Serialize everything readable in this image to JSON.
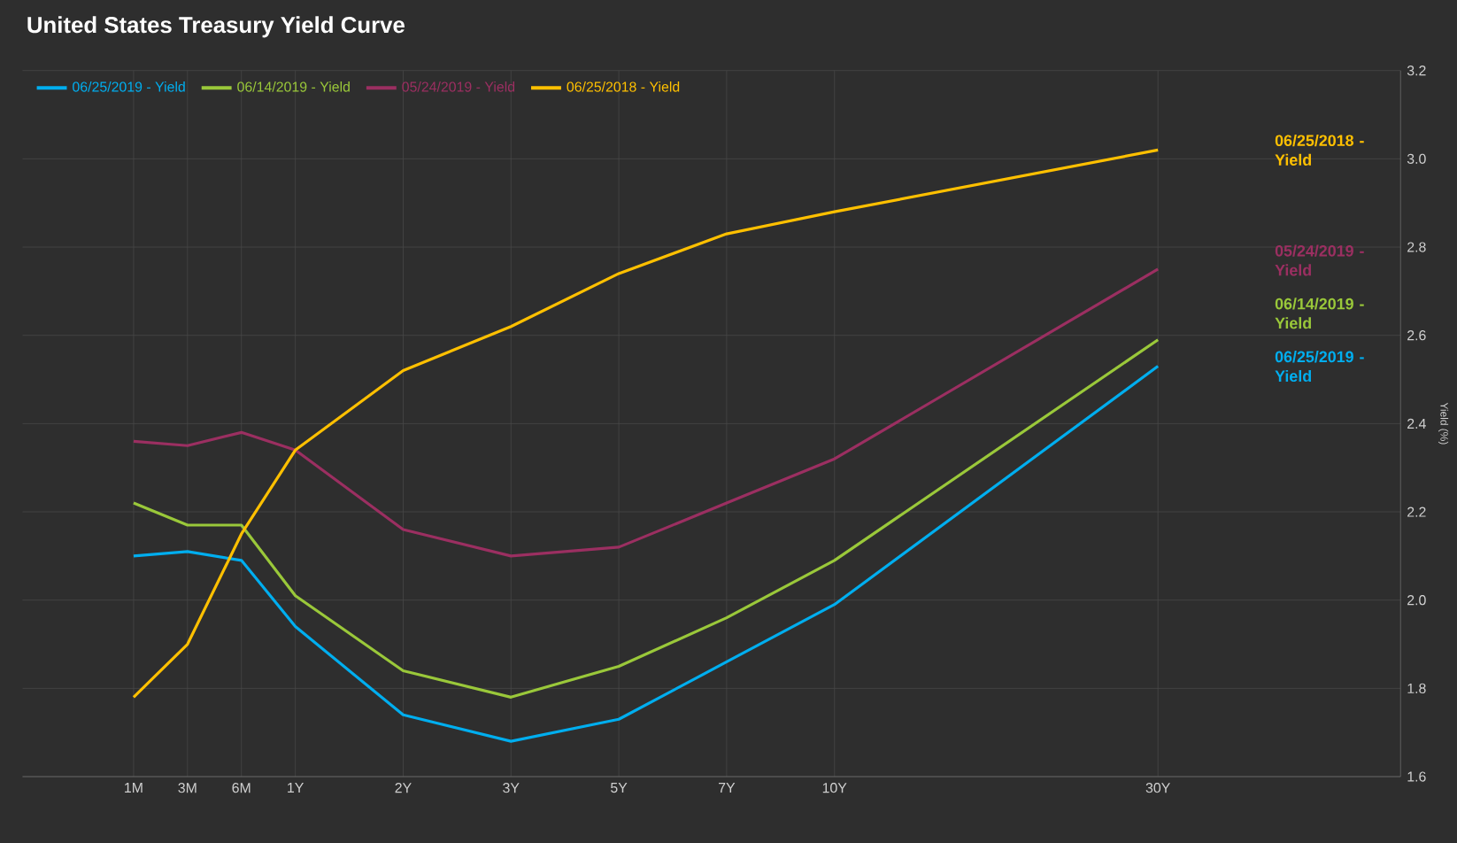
{
  "chart_data": {
    "type": "line",
    "title": "United States Treasury Yield Curve",
    "ylabel": "Yield (%)",
    "categories": [
      "1M",
      "3M",
      "6M",
      "1Y",
      null,
      "2Y",
      null,
      "3Y",
      null,
      "5Y",
      null,
      "7Y",
      null,
      "10Y",
      null,
      null,
      null,
      null,
      null,
      "30Y"
    ],
    "ylim": [
      1.6,
      3.2
    ],
    "yticks": [
      {
        "value": 1.6,
        "label": "1.6"
      },
      {
        "value": 1.8,
        "label": "1.8"
      },
      {
        "value": 2.0,
        "label": "2.0"
      },
      {
        "value": 2.2,
        "label": "2.2"
      },
      {
        "value": 2.4,
        "label": "2.4"
      },
      {
        "value": 2.6,
        "label": "2.6"
      },
      {
        "value": 2.8,
        "label": "2.8"
      },
      {
        "value": 3.0,
        "label": "3.0"
      },
      {
        "value": 3.2,
        "label": "3.2"
      }
    ],
    "grid": true,
    "legend": "top left",
    "marker": "none",
    "line_style": "solid",
    "series": [
      {
        "name": "06/25/2019 - Yield",
        "color": "#00aeef",
        "values": [
          2.1,
          2.11,
          2.09,
          1.94,
          null,
          1.74,
          null,
          1.68,
          null,
          1.73,
          null,
          1.86,
          null,
          1.99,
          null,
          null,
          null,
          null,
          null,
          2.53
        ]
      },
      {
        "name": "06/14/2019 - Yield",
        "color": "#9ac83a",
        "values": [
          2.22,
          2.17,
          2.17,
          2.01,
          null,
          1.84,
          null,
          1.78,
          null,
          1.85,
          null,
          1.96,
          null,
          2.09,
          null,
          null,
          null,
          null,
          null,
          2.59
        ]
      },
      {
        "name": "05/24/2019 - Yield",
        "color": "#9b2f61",
        "values": [
          2.36,
          2.35,
          2.38,
          2.34,
          null,
          2.16,
          null,
          2.1,
          null,
          2.12,
          null,
          2.22,
          null,
          2.32,
          null,
          null,
          null,
          null,
          null,
          2.75
        ]
      },
      {
        "name": "06/25/2018 - Yield",
        "color": "#ffc000",
        "values": [
          1.78,
          1.9,
          2.15,
          2.34,
          null,
          2.52,
          null,
          2.62,
          null,
          2.74,
          null,
          2.83,
          null,
          2.88,
          null,
          null,
          null,
          null,
          null,
          3.02
        ]
      }
    ]
  }
}
